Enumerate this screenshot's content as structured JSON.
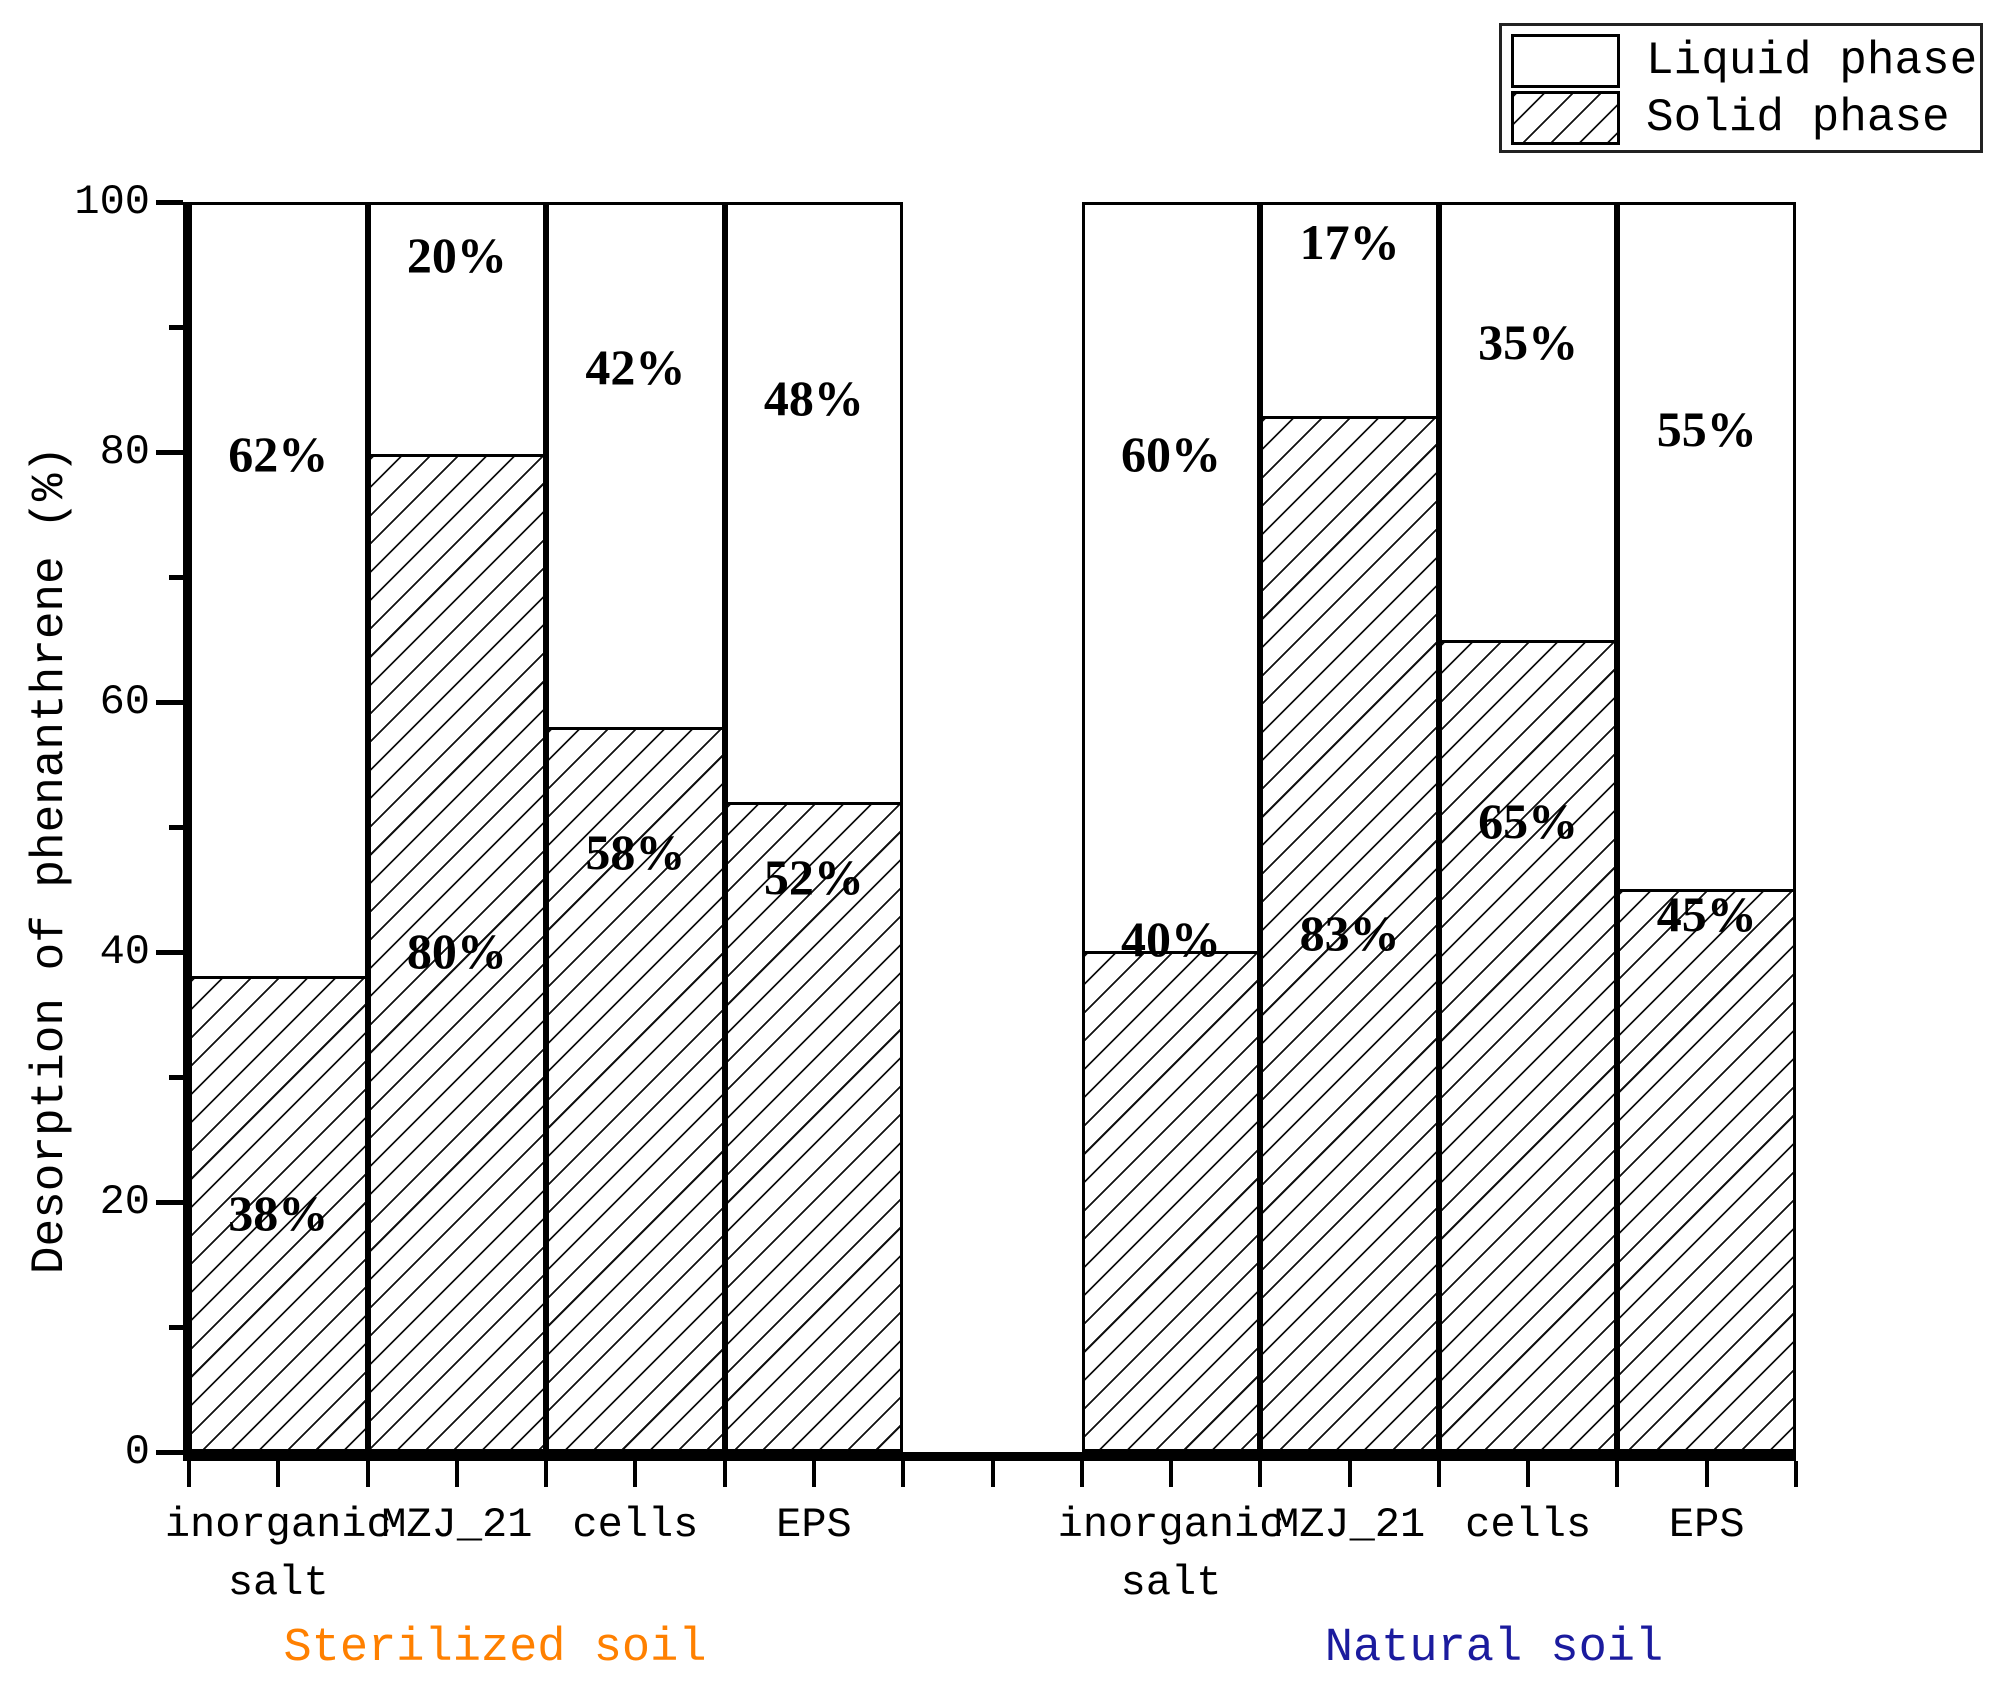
{
  "legend": {
    "items": [
      {
        "label": "Liquid phase",
        "fill": "white"
      },
      {
        "label": "Solid phase",
        "fill": "hatch"
      }
    ]
  },
  "chart_data": {
    "type": "bar",
    "stacked": true,
    "title": "",
    "xlabel": "",
    "ylabel": "Desorption of phenanthrene (%)",
    "ylim": [
      0,
      100
    ],
    "yticks_major": [
      0,
      20,
      40,
      60,
      80,
      100
    ],
    "yticks_minor": [
      10,
      30,
      50,
      70,
      90
    ],
    "x_ticks_per_halfbar": 19,
    "series": [
      "Liquid phase",
      "Solid phase"
    ],
    "groups": [
      {
        "id": "sterilized-soil",
        "title": "Sterilized soil",
        "title_color": "#ff8000",
        "bars": [
          {
            "column": 0,
            "category": "inorganic\nsalt",
            "solid": 38,
            "liquid": 62,
            "solid_label": "38%",
            "liquid_label": "62%",
            "solid_label_y": 19,
            "liquid_label_y": 80
          },
          {
            "column": 1,
            "category": "MZJ_21",
            "solid": 80,
            "liquid": 20,
            "solid_label": "80%",
            "liquid_label": "20%",
            "solid_label_y": 40,
            "liquid_label_y": 96
          },
          {
            "column": 2,
            "category": "cells",
            "solid": 58,
            "liquid": 42,
            "solid_label": "58%",
            "liquid_label": "42%",
            "solid_label_y": 48,
            "liquid_label_y": 87
          },
          {
            "column": 3,
            "category": "EPS",
            "solid": 52,
            "liquid": 48,
            "solid_label": "52%",
            "liquid_label": "48%",
            "solid_label_y": 46,
            "liquid_label_y": 84.5
          }
        ]
      },
      {
        "id": "natural-soil",
        "title": "Natural soil",
        "title_color": "#1b1b9e",
        "bars": [
          {
            "column": 5,
            "category": "inorganic\nsalt",
            "solid": 40,
            "liquid": 60,
            "solid_label": "40%",
            "liquid_label": "60%",
            "solid_label_y": 41,
            "liquid_label_y": 80
          },
          {
            "column": 6,
            "category": "MZJ_21",
            "solid": 83,
            "liquid": 17,
            "solid_label": "83%",
            "liquid_label": "17%",
            "solid_label_y": 41.5,
            "liquid_label_y": 97
          },
          {
            "column": 7,
            "category": "cells",
            "solid": 65,
            "liquid": 35,
            "solid_label": "65%",
            "liquid_label": "35%",
            "solid_label_y": 50.5,
            "liquid_label_y": 89
          },
          {
            "column": 8,
            "category": "EPS",
            "solid": 45,
            "liquid": 55,
            "solid_label": "45%",
            "liquid_label": "55%",
            "solid_label_y": 43,
            "liquid_label_y": 82
          }
        ]
      }
    ]
  }
}
